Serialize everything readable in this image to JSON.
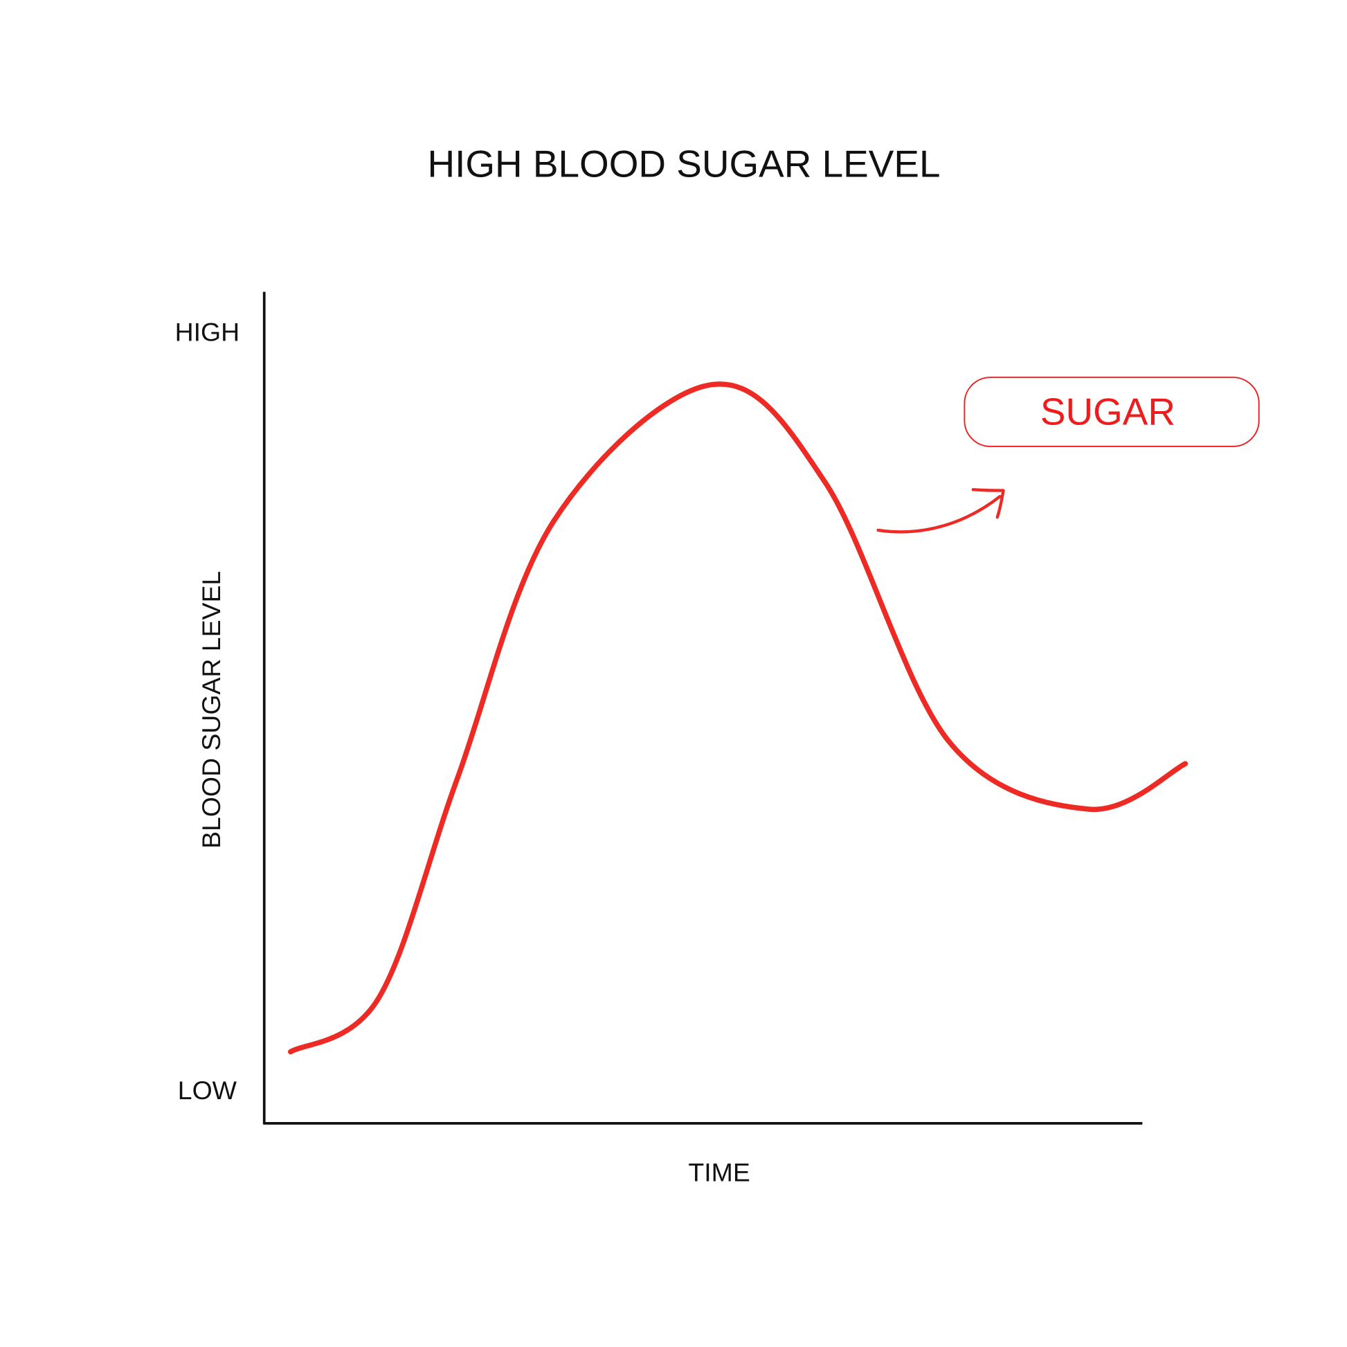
{
  "chart_data": {
    "type": "line",
    "title": "HIGH BLOOD SUGAR LEVEL",
    "xlabel": "TIME",
    "ylabel": "BLOOD SUGAR LEVEL",
    "y_tick_labels": {
      "high": "HIGH",
      "low": "LOW"
    },
    "xlim": [
      0,
      1
    ],
    "ylim": [
      0,
      1
    ],
    "grid": false,
    "series": [
      {
        "name": "SUGAR",
        "color": "#ee2a24",
        "x": [
          0.03,
          0.13,
          0.22,
          0.33,
          0.51,
          0.64,
          0.78,
          0.94,
          1.05
        ],
        "y": [
          0.05,
          0.12,
          0.41,
          0.75,
          0.93,
          0.8,
          0.46,
          0.37,
          0.43
        ]
      }
    ],
    "annotation": {
      "label": "SUGAR",
      "color": "#ee1c1c"
    }
  }
}
